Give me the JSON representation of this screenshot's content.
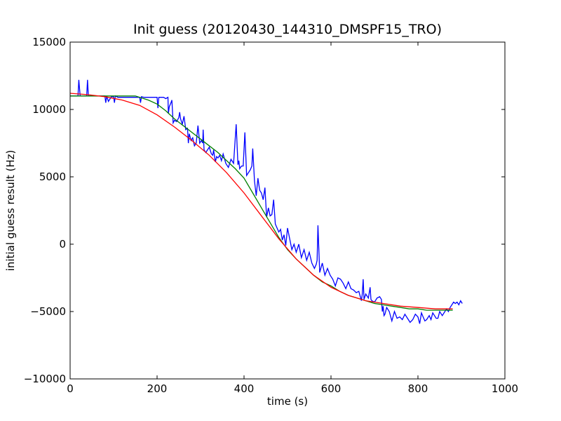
{
  "chart_data": {
    "type": "line",
    "title": "Init guess (20120430_144310_DMSPF15_TRO)",
    "xlabel": "time (s)",
    "ylabel": "initial guess result (Hz)",
    "xlim": [
      0,
      1000
    ],
    "ylim": [
      -10000,
      15000
    ],
    "xticks": [
      0,
      200,
      400,
      600,
      800,
      1000
    ],
    "yticks": [
      -10000,
      -5000,
      0,
      5000,
      10000,
      15000
    ],
    "xtick_labels": [
      "0",
      "200",
      "400",
      "600",
      "800",
      "1000"
    ],
    "ytick_labels": [
      "−10000",
      "−5000",
      "0",
      "5000",
      "10000",
      "15000"
    ],
    "grid": false,
    "legend": "none",
    "series": [
      {
        "color": "#0000ff",
        "x": [
          0,
          5,
          10,
          15,
          18,
          20,
          23,
          26,
          30,
          34,
          38,
          40,
          42,
          46,
          50,
          60,
          70,
          80,
          82,
          84,
          88,
          95,
          100,
          102,
          104,
          110,
          120,
          130,
          140,
          150,
          160,
          162,
          164,
          170,
          180,
          190,
          200,
          202,
          204,
          210,
          215,
          220,
          225,
          226,
          228,
          232,
          234,
          237,
          240,
          245,
          250,
          252,
          254,
          258,
          262,
          266,
          270,
          272,
          274,
          278,
          282,
          286,
          290,
          294,
          298,
          302,
          305,
          306,
          308,
          312,
          316,
          320,
          325,
          328,
          330,
          334,
          337,
          340,
          344,
          348,
          352,
          358,
          364,
          370,
          376,
          382,
          386,
          388,
          390,
          394,
          398,
          402,
          406,
          410,
          414,
          418,
          420,
          424,
          428,
          432,
          436,
          440,
          444,
          448,
          452,
          456,
          460,
          464,
          468,
          472,
          476,
          480,
          484,
          488,
          492,
          496,
          500,
          505,
          510,
          515,
          520,
          526,
          532,
          538,
          544,
          550,
          556,
          562,
          566,
          568,
          570,
          574,
          580,
          586,
          592,
          598,
          604,
          610,
          616,
          622,
          628,
          634,
          640,
          646,
          652,
          658,
          664,
          670,
          672,
          674,
          676,
          680,
          686,
          690,
          692,
          694,
          700,
          706,
          712,
          716,
          718,
          720,
          722,
          724,
          728,
          734,
          740,
          746,
          752,
          758,
          764,
          770,
          776,
          782,
          788,
          794,
          800,
          804,
          808,
          812,
          816,
          820,
          826,
          830,
          834,
          838,
          842,
          846,
          850,
          856,
          862,
          866,
          870,
          874,
          878,
          882,
          886,
          890,
          894,
          898,
          902
        ],
        "y": [
          11000,
          11000,
          11000,
          11000,
          11000,
          12200,
          11000,
          11000,
          11000,
          11000,
          11000,
          12200,
          11000,
          11000,
          11000,
          11000,
          11000,
          11000,
          10500,
          11000,
          10600,
          10950,
          10950,
          10500,
          11000,
          10900,
          10900,
          10900,
          10900,
          10900,
          10900,
          10500,
          10950,
          10900,
          10900,
          10900,
          10900,
          10100,
          10900,
          10900,
          10900,
          10800,
          10900,
          9700,
          10200,
          10500,
          10700,
          9000,
          9200,
          9100,
          9400,
          9800,
          9300,
          8900,
          9500,
          8500,
          8600,
          7500,
          8200,
          7700,
          7900,
          7300,
          7500,
          8800,
          7500,
          7700,
          7500,
          8500,
          7000,
          6800,
          7000,
          7200,
          6700,
          6600,
          7000,
          6100,
          6500,
          6400,
          6600,
          6200,
          6700,
          6000,
          5700,
          6300,
          6000,
          8900,
          5900,
          6200,
          5600,
          5800,
          5800,
          8300,
          5100,
          5300,
          5500,
          5800,
          7100,
          4700,
          3600,
          4900,
          4000,
          3800,
          3300,
          4200,
          2000,
          2700,
          2100,
          2200,
          3300,
          1500,
          1200,
          900,
          1100,
          300,
          700,
          -100,
          1200,
          400,
          -400,
          0,
          -600,
          0,
          -1000,
          -400,
          -1200,
          -600,
          -1400,
          -1800,
          -1500,
          -1200,
          1400,
          -2100,
          -1400,
          -2300,
          -1800,
          -2300,
          -2600,
          -3100,
          -2500,
          -2600,
          -2900,
          -3300,
          -2800,
          -3300,
          -3400,
          -3600,
          -3500,
          -4200,
          -3700,
          -2600,
          -4100,
          -3700,
          -4000,
          -3200,
          -4100,
          -4200,
          -4300,
          -4000,
          -3900,
          -4100,
          -5000,
          -4600,
          -5300,
          -5200,
          -4700,
          -5000,
          -5700,
          -5000,
          -5500,
          -5400,
          -5600,
          -5200,
          -5500,
          -5800,
          -5600,
          -5200,
          -5400,
          -5900,
          -5100,
          -5400,
          -5700,
          -5600,
          -5300,
          -5600,
          -5100,
          -5300,
          -5500,
          -5500,
          -5000,
          -5300,
          -5000,
          -4800,
          -5000,
          -4700,
          -4500,
          -4300,
          -4400,
          -4300,
          -4500,
          -4200,
          -4400
        ]
      },
      {
        "color": "#007f00",
        "x": [
          0,
          50,
          100,
          150,
          180,
          200,
          220,
          240,
          260,
          280,
          300,
          320,
          340,
          360,
          380,
          400,
          420,
          440,
          460,
          480,
          500,
          520,
          540,
          560,
          580,
          600,
          620,
          640,
          660,
          680,
          700,
          720,
          740,
          760,
          780,
          800,
          820,
          840,
          860,
          880
        ],
        "y": [
          11000,
          11000,
          11000,
          11000,
          10700,
          10400,
          9900,
          9300,
          8800,
          8300,
          7800,
          7300,
          6800,
          6200,
          5600,
          4900,
          3800,
          2700,
          1600,
          500,
          -400,
          -1100,
          -1700,
          -2300,
          -2800,
          -3100,
          -3500,
          -3800,
          -4000,
          -4200,
          -4400,
          -4500,
          -4600,
          -4700,
          -4800,
          -4800,
          -4900,
          -4900,
          -4900,
          -4900
        ]
      },
      {
        "color": "#ff0000",
        "x": [
          0,
          40,
          80,
          120,
          160,
          200,
          240,
          280,
          320,
          360,
          400,
          440,
          480,
          520,
          560,
          600,
          640,
          680,
          720,
          760,
          800,
          840,
          880
        ],
        "y": [
          11200,
          11100,
          10950,
          10700,
          10300,
          9600,
          8700,
          7700,
          6600,
          5300,
          3800,
          2100,
          400,
          -1100,
          -2300,
          -3200,
          -3800,
          -4200,
          -4400,
          -4600,
          -4700,
          -4800,
          -4800
        ]
      }
    ]
  }
}
